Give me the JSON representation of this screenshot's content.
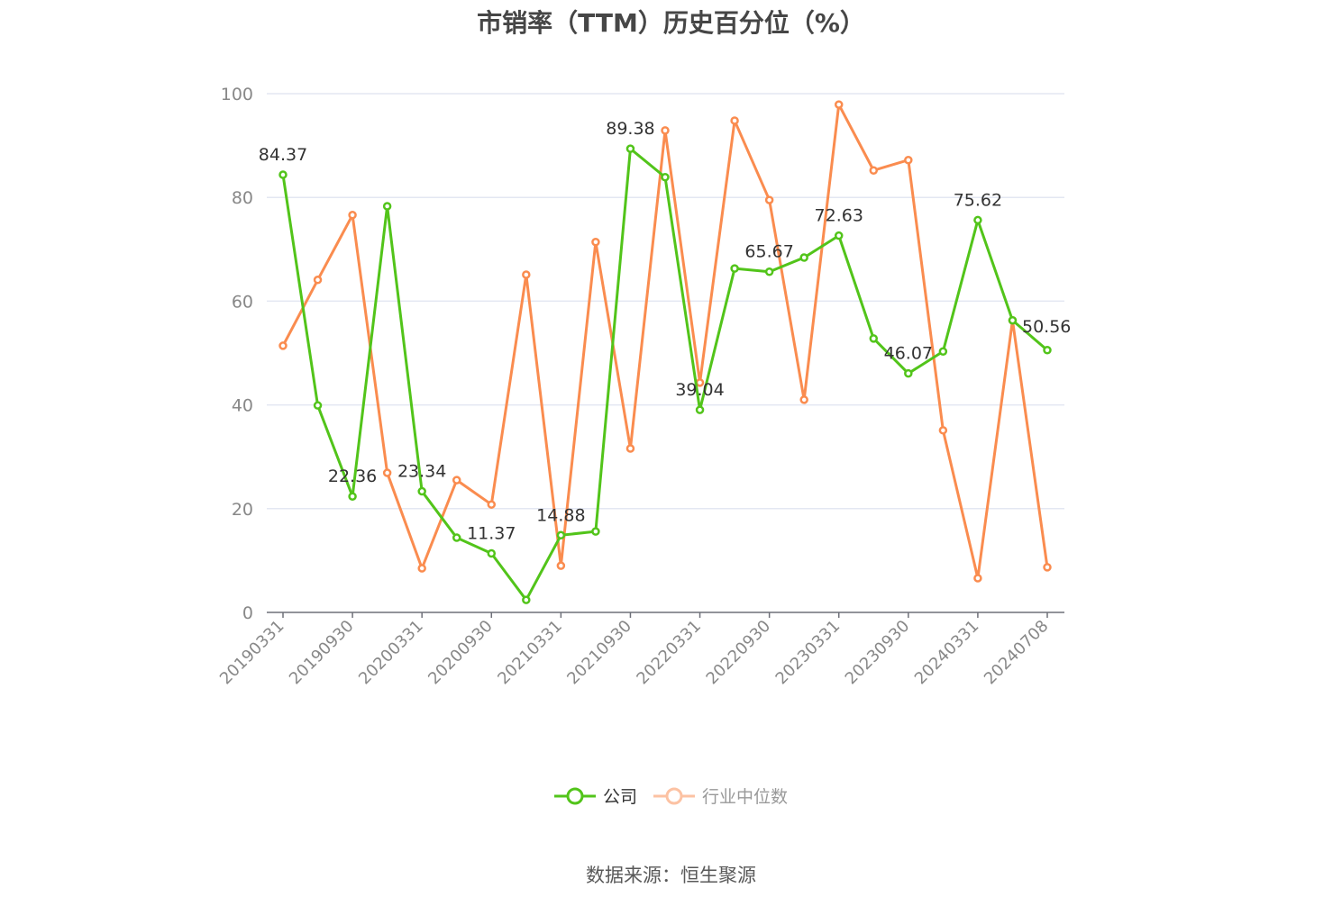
{
  "chart_data": {
    "type": "line",
    "title": "市销率（TTM）历史百分位（%）",
    "xlabel": "",
    "ylabel": "",
    "ylim": [
      0,
      100
    ],
    "yticks": [
      0,
      20,
      40,
      60,
      80,
      100
    ],
    "grid": true,
    "legend_position": "bottom",
    "x": [
      "20190331",
      "20190630",
      "20190930",
      "20191231",
      "20200331",
      "20200630",
      "20200930",
      "20201231",
      "20210331",
      "20210630",
      "20210930",
      "20211231",
      "20220331",
      "20220630",
      "20220930",
      "20221231",
      "20230331",
      "20230630",
      "20230930",
      "20231231",
      "20240331",
      "20240630",
      "20240708"
    ],
    "xtick_labels": [
      "20190331",
      "20190930",
      "20200331",
      "20200930",
      "20210331",
      "20210930",
      "20220331",
      "20220930",
      "20230331",
      "20230930",
      "20240331",
      "20240708"
    ],
    "series": [
      {
        "name": "公司",
        "color": "#52c41a",
        "values": [
          84.37,
          39.9,
          22.36,
          78.3,
          23.34,
          14.4,
          11.37,
          2.4,
          14.88,
          15.6,
          89.38,
          83.9,
          39.04,
          66.3,
          65.67,
          68.4,
          72.63,
          52.8,
          46.07,
          50.3,
          75.62,
          56.3,
          50.56
        ],
        "labeled_points": {
          "0": "84.37",
          "2": "22.36",
          "4": "23.34",
          "6": "11.37",
          "8": "14.88",
          "10": "89.38",
          "12": "39.04",
          "14": "65.67",
          "16": "72.63",
          "18": "46.07",
          "20": "75.62",
          "22": "50.56"
        }
      },
      {
        "name": "行业中位数",
        "color": "#fa8c4f",
        "values": [
          51.4,
          64.1,
          76.6,
          26.9,
          8.5,
          25.5,
          20.8,
          65.1,
          9.0,
          71.4,
          31.6,
          92.9,
          44.3,
          94.8,
          79.5,
          41.0,
          97.9,
          85.2,
          87.2,
          35.1,
          6.6,
          56.3,
          8.7
        ]
      }
    ]
  },
  "legend": {
    "items": [
      {
        "label": "公司",
        "color": "#52c41a",
        "active": true
      },
      {
        "label": "行业中位数",
        "color": "#fa8c4f",
        "active": false
      }
    ]
  },
  "source": "数据来源：恒生聚源"
}
